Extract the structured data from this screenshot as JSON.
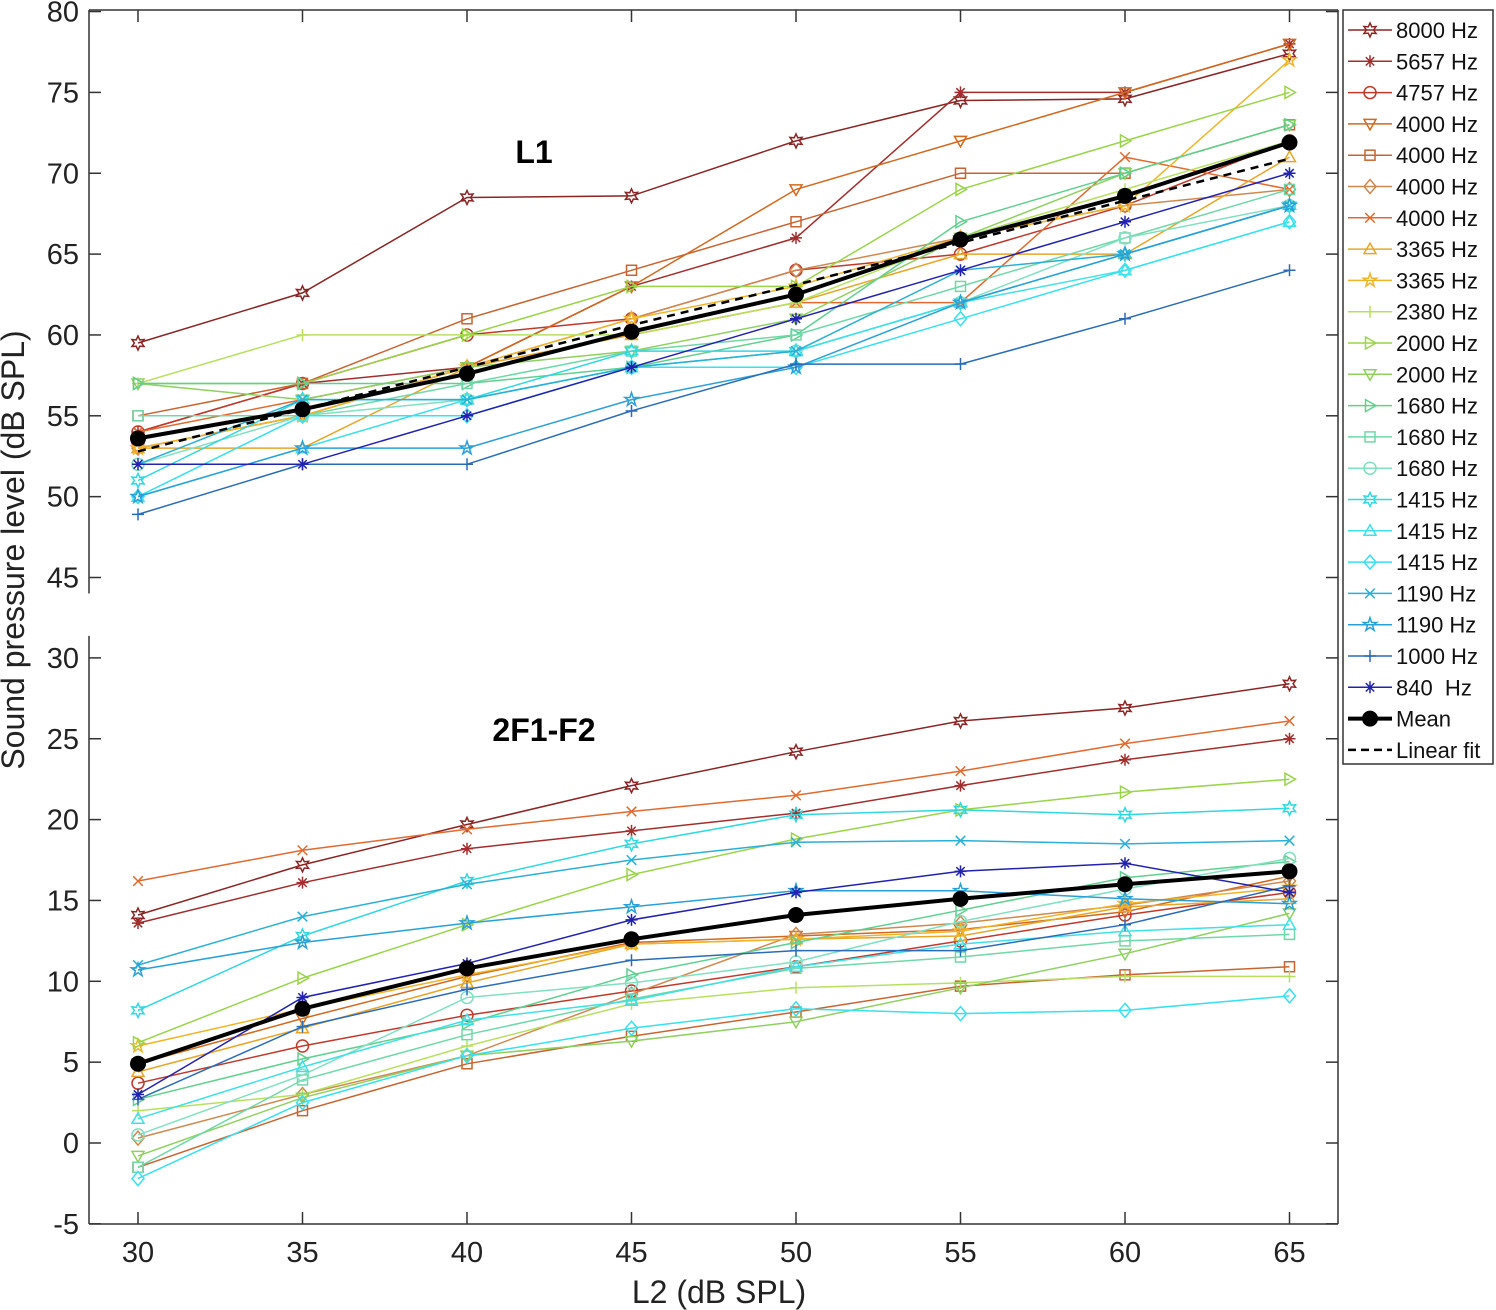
{
  "chart_data": {
    "type": "line",
    "xlabel": "L2 (dB SPL)",
    "ylabel": "Sound pressure level (dB SPL)",
    "x": [
      30,
      35,
      40,
      45,
      50,
      55,
      60,
      65
    ],
    "xticks": [
      "30",
      "35",
      "40",
      "45",
      "50",
      "55",
      "60",
      "65"
    ],
    "yticks": [
      "-5",
      "0",
      "5",
      "10",
      "15",
      "20",
      "25",
      "30",
      "45",
      "50",
      "55",
      "60",
      "65",
      "70",
      "75",
      "80"
    ],
    "ylim": [
      -5,
      80
    ],
    "y_axis_break": [
      30,
      45
    ],
    "annotations": [
      "L1",
      "2F1-F2"
    ],
    "legend_position": "right",
    "series": [
      {
        "name": "8000 Hz",
        "color": "#8b2525",
        "marker": "hexagram",
        "l1": [
          59.5,
          62.6,
          68.5,
          68.6,
          72,
          74.5,
          74.6,
          77.4
        ],
        "dp": [
          14.1,
          17.2,
          19.7,
          22.1,
          24.2,
          26.1,
          26.9,
          28.4
        ]
      },
      {
        "name": "5657 Hz",
        "color": "#a32d2d",
        "marker": "asterisk",
        "l1": [
          54,
          57,
          58,
          63,
          66,
          75,
          75,
          78
        ],
        "dp": [
          13.6,
          16.1,
          18.2,
          19.3,
          20.4,
          22.1,
          23.7,
          25
        ]
      },
      {
        "name": "4757 Hz",
        "color": "#c0392b",
        "marker": "circle",
        "l1": [
          54,
          57,
          60,
          61,
          64,
          65,
          68,
          72
        ],
        "dp": [
          3.7,
          6,
          7.9,
          9.4,
          10.9,
          12.5,
          14.1,
          15.5
        ]
      },
      {
        "name": "4000 Hz",
        "color": "#d2691e",
        "marker": "triangle-down",
        "l1": [
          53,
          55,
          58,
          63,
          69,
          72,
          75,
          78
        ],
        "dp": [
          4.9,
          7.7,
          10.3,
          12.4,
          12.8,
          13.2,
          14.3,
          16.5
        ]
      },
      {
        "name": "4000 Hz",
        "color": "#c86431",
        "marker": "square",
        "l1": [
          55,
          57,
          61,
          64,
          67,
          70,
          70,
          73
        ],
        "dp": [
          -1.5,
          2,
          4.9,
          6.6,
          8.1,
          9.7,
          10.4,
          10.9
        ]
      },
      {
        "name": "4000 Hz",
        "color": "#d08850",
        "marker": "diamond",
        "l1": [
          53,
          55,
          58,
          61,
          64,
          66,
          68,
          69
        ],
        "dp": [
          0.3,
          3,
          5.4,
          9.2,
          12.9,
          13.6,
          14.7,
          16.2
        ]
      },
      {
        "name": "4000 Hz",
        "color": "#e06a30",
        "marker": "x",
        "l1": [
          54,
          56,
          58,
          60,
          62,
          62,
          71,
          69
        ],
        "dp": [
          16.2,
          18.1,
          19.4,
          20.5,
          21.5,
          23,
          24.7,
          26.1
        ]
      },
      {
        "name": "3365 Hz",
        "color": "#e8a628",
        "marker": "triangle",
        "l1": [
          53,
          53,
          58,
          60,
          62,
          65,
          65,
          71
        ],
        "dp": [
          4.4,
          7.1,
          9.9,
          12.3,
          12.6,
          12.8,
          14.6,
          15.1
        ]
      },
      {
        "name": "3365 Hz",
        "color": "#f0b428",
        "marker": "star",
        "l1": [
          53,
          55,
          58,
          61,
          63,
          66,
          68,
          77
        ],
        "dp": [
          6,
          8.3,
          10.4,
          12.3,
          12.6,
          13.1,
          14.8,
          15.8
        ]
      },
      {
        "name": "2380 Hz",
        "color": "#b8e060",
        "marker": "plus",
        "l1": [
          57,
          60,
          60,
          60,
          62,
          66,
          69,
          72
        ],
        "dp": [
          2,
          3,
          6,
          8.6,
          9.6,
          9.9,
          10.3,
          10.3
        ]
      },
      {
        "name": "2000 Hz",
        "color": "#9ad448",
        "marker": "triangle-right",
        "l1": [
          57,
          57,
          60,
          63,
          63,
          69,
          72,
          75
        ],
        "dp": [
          6.2,
          10.2,
          13.5,
          16.6,
          18.8,
          20.6,
          21.7,
          22.5
        ]
      },
      {
        "name": "2000 Hz",
        "color": "#8fd060",
        "marker": "triangle-down",
        "l1": [
          57,
          56,
          58,
          59,
          61,
          66,
          70,
          73
        ],
        "dp": [
          -0.8,
          2.8,
          5.4,
          6.3,
          7.5,
          9.6,
          11.7,
          14.2
        ]
      },
      {
        "name": "1680 Hz",
        "color": "#60d090",
        "marker": "triangle-right",
        "l1": [
          57,
          57,
          57,
          58,
          60,
          67,
          70,
          73
        ],
        "dp": [
          2.7,
          5.2,
          7.4,
          10.4,
          12.4,
          14.4,
          16.4,
          17.4
        ]
      },
      {
        "name": "1680 Hz",
        "color": "#70d8a8",
        "marker": "square",
        "l1": [
          55,
          55,
          57,
          59,
          60,
          63,
          66,
          69
        ],
        "dp": [
          -1.5,
          3.9,
          6.7,
          8.9,
          10.8,
          11.5,
          12.5,
          12.9
        ]
      },
      {
        "name": "1680 Hz",
        "color": "#80e0c0",
        "marker": "circle",
        "l1": [
          52,
          55,
          56,
          58,
          59,
          62,
          66,
          68
        ],
        "dp": [
          0.5,
          4.2,
          9,
          9.9,
          11.2,
          13.7,
          15.7,
          17.6
        ]
      },
      {
        "name": "1415 Hz",
        "color": "#30d8e0",
        "marker": "hexagram",
        "l1": [
          51,
          56,
          56,
          59,
          59,
          62,
          65,
          68
        ],
        "dp": [
          8.2,
          12.8,
          16.2,
          18.5,
          20.3,
          20.6,
          20.3,
          20.7
        ]
      },
      {
        "name": "1415 Hz",
        "color": "#40e0e8",
        "marker": "triangle",
        "l1": [
          50,
          53,
          56,
          58,
          59,
          62,
          64,
          67
        ],
        "dp": [
          1.5,
          4.7,
          7.6,
          8.8,
          10.9,
          12.3,
          13.1,
          13.5
        ]
      },
      {
        "name": "1415 Hz",
        "color": "#38e0f0",
        "marker": "diamond",
        "l1": [
          50,
          55,
          55,
          58,
          58,
          61,
          64,
          67
        ],
        "dp": [
          -2.2,
          2.5,
          5.4,
          7.1,
          8.3,
          8,
          8.2,
          9.1
        ]
      },
      {
        "name": "1190 Hz",
        "color": "#2ab0d8",
        "marker": "x",
        "l1": [
          52,
          56,
          56,
          58,
          59,
          64,
          65,
          68
        ],
        "dp": [
          11,
          14,
          16,
          17.5,
          18.6,
          18.7,
          18.5,
          18.7
        ]
      },
      {
        "name": "1190 Hz",
        "color": "#2aa0d8",
        "marker": "star",
        "l1": [
          50,
          53,
          53,
          56,
          58,
          62,
          65,
          68
        ],
        "dp": [
          10.7,
          12.4,
          13.6,
          14.6,
          15.6,
          15.6,
          15.1,
          14.8
        ]
      },
      {
        "name": "1000 Hz",
        "color": "#2a6cb8",
        "marker": "plus",
        "l1": [
          48.9,
          52,
          52,
          55.3,
          58.2,
          58.2,
          61,
          64
        ],
        "dp": [
          2.7,
          7.2,
          9.5,
          11.3,
          11.9,
          11.9,
          13.5,
          15.9
        ]
      },
      {
        "name": "840  Hz",
        "color": "#2222b0",
        "marker": "asterisk",
        "l1": [
          52,
          52,
          55,
          58,
          61,
          64,
          67,
          70
        ],
        "dp": [
          3,
          9,
          11.1,
          13.8,
          15.5,
          16.8,
          17.3,
          15.5
        ]
      }
    ],
    "mean": {
      "name": "Mean",
      "color": "#000000",
      "l1": [
        53.6,
        55.4,
        57.6,
        60.2,
        62.5,
        65.9,
        68.6,
        71.9
      ],
      "dp": [
        4.9,
        8.3,
        10.8,
        12.6,
        14.1,
        15.1,
        16,
        16.8
      ]
    },
    "linear_fit": {
      "name": "Linear fit",
      "color": "#000000",
      "l1": [
        52.8,
        55.4,
        58,
        60.6,
        63.1,
        65.7,
        68.3,
        70.9
      ]
    }
  }
}
